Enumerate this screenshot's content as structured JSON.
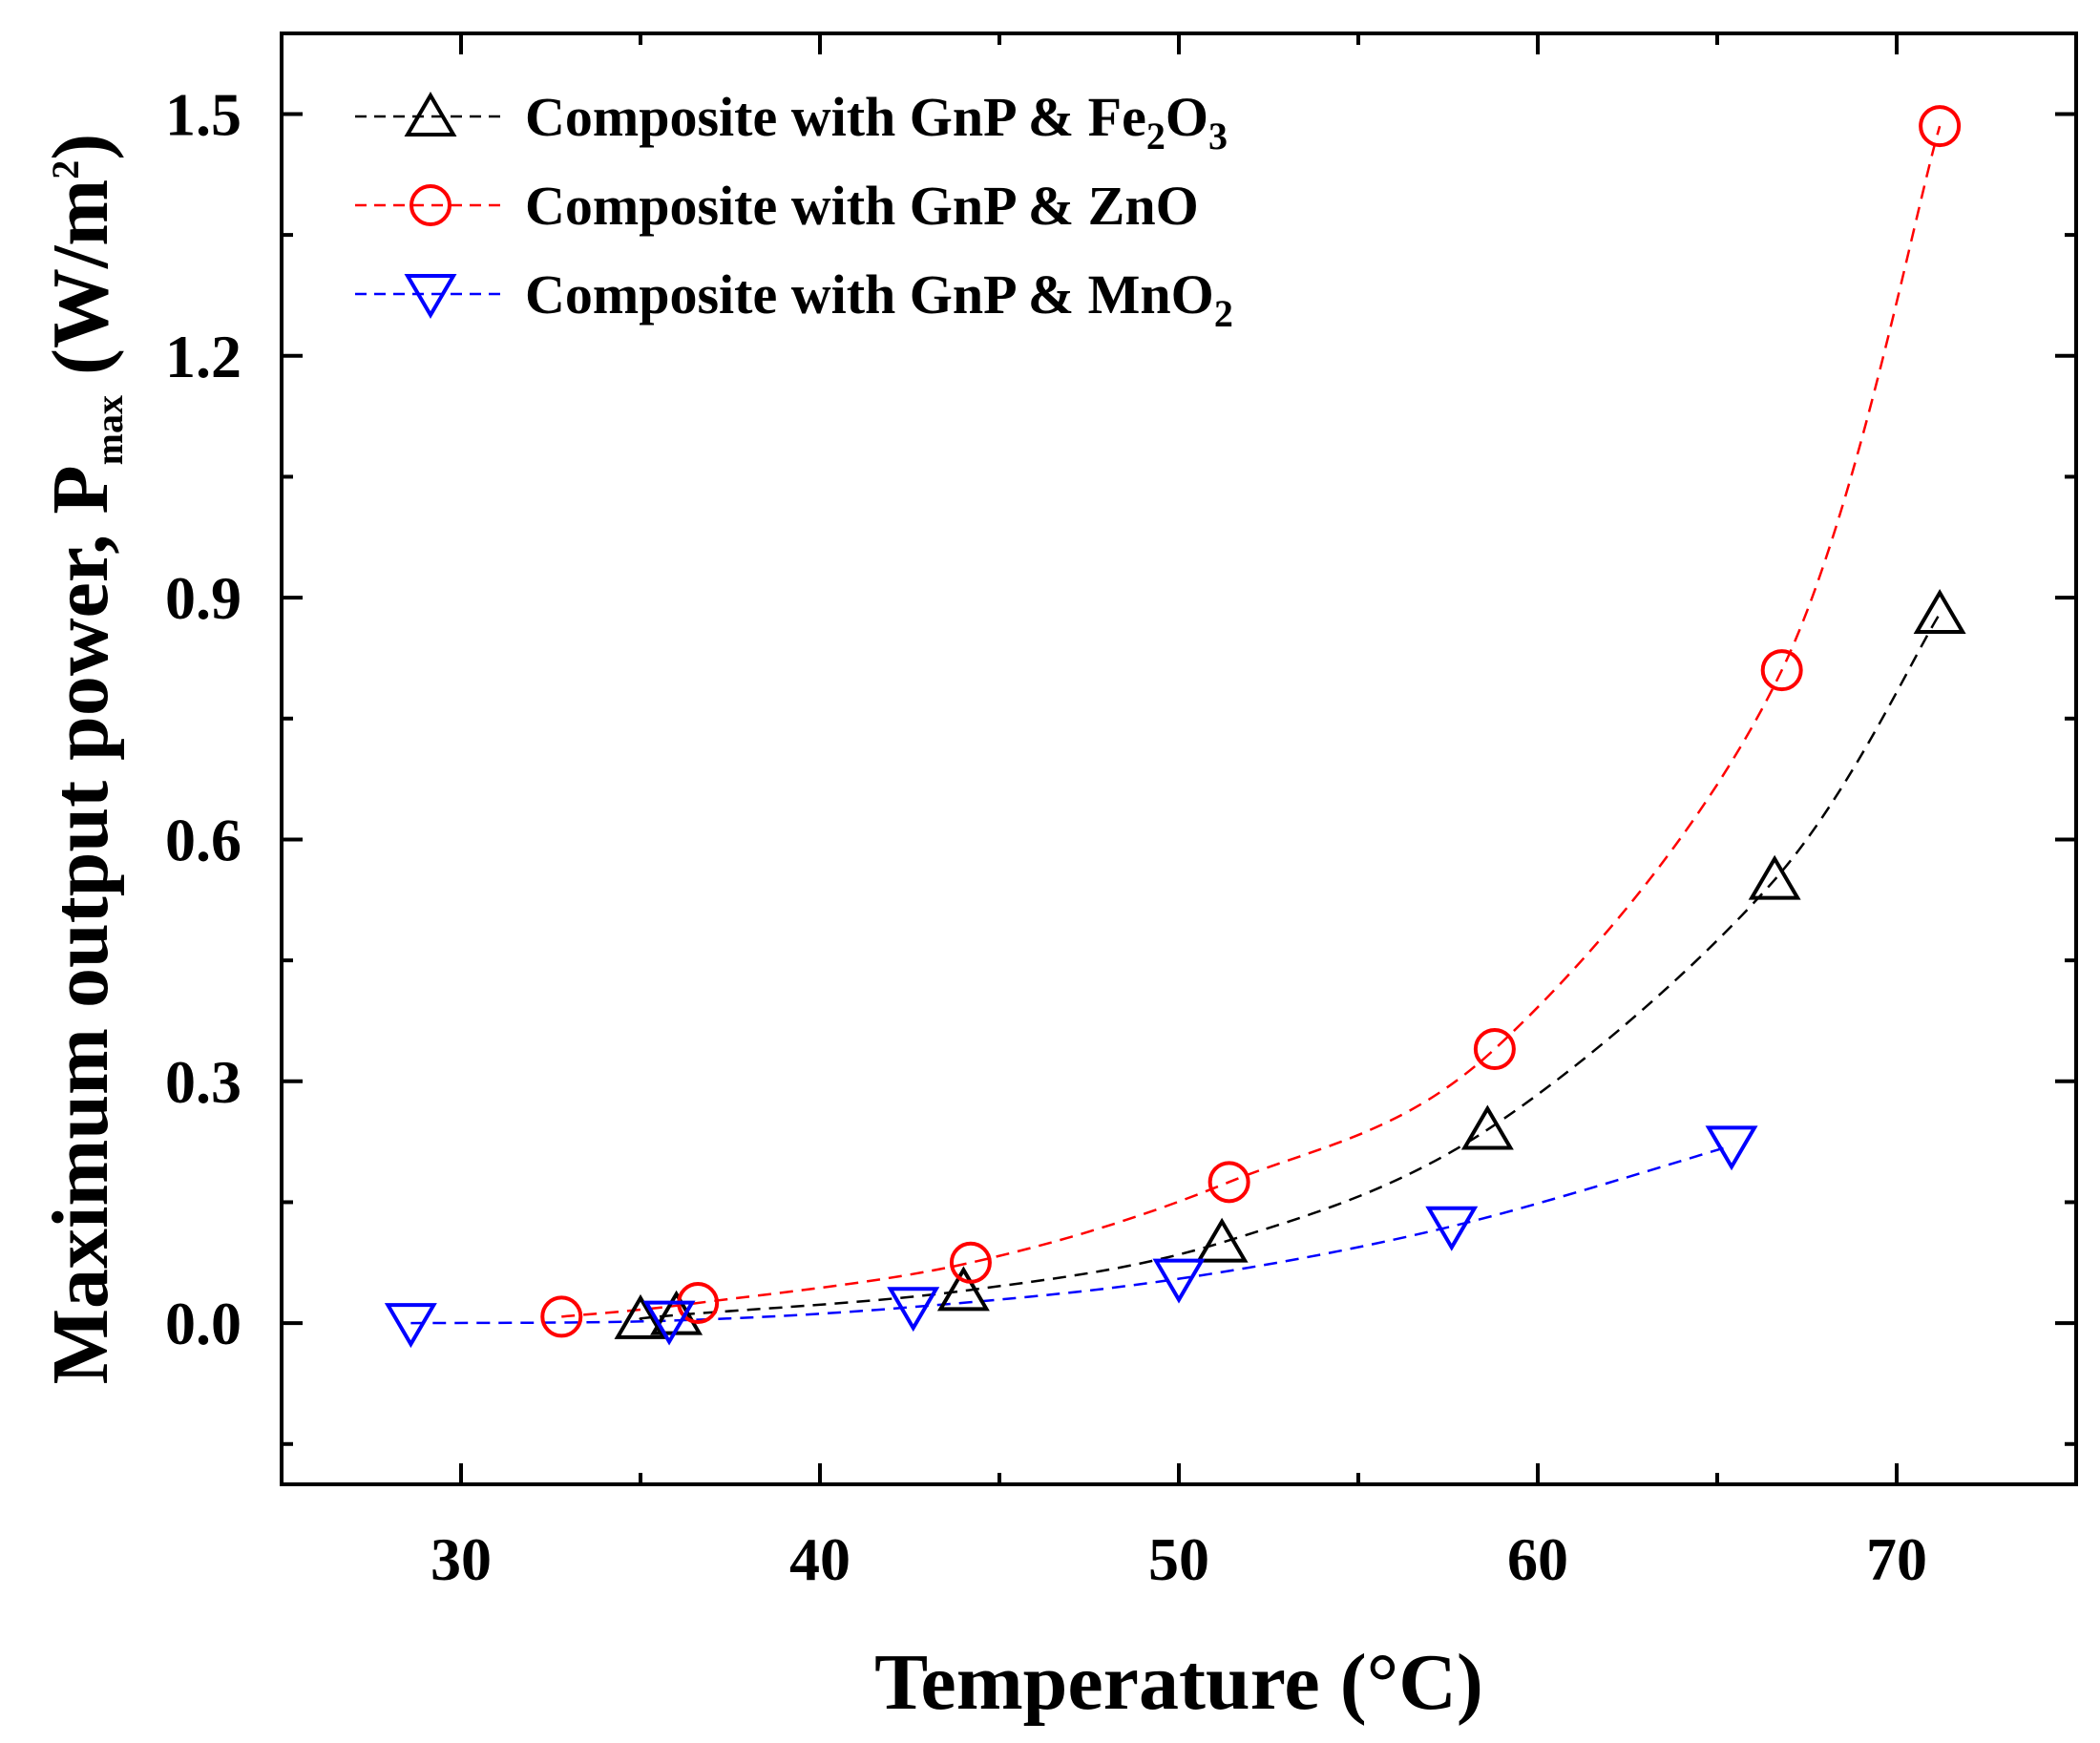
{
  "chart_data": {
    "type": "scatter",
    "xlabel": "Temperature (°C)",
    "ylabel": {
      "main": "Maximum output power, P",
      "subscript": "max",
      "unit_open": " (W/m",
      "superscript": "2",
      "unit_close": ")"
    },
    "xlim": [
      25,
      75
    ],
    "ylim": [
      -0.2,
      1.6
    ],
    "xticks": [
      30,
      40,
      50,
      60,
      70
    ],
    "xtick_labels": [
      "30",
      "40",
      "50",
      "60",
      "70"
    ],
    "yticks": [
      0.0,
      0.3,
      0.6,
      0.9,
      1.2,
      1.5
    ],
    "ytick_labels": [
      "0.0",
      "0.3",
      "0.6",
      "0.9",
      "1.2",
      "1.5"
    ],
    "grid": false,
    "legend_position": "top-left",
    "series": [
      {
        "name": "Composite with GnP & Fe2O3",
        "legend_parts": [
          "Composite with GnP & Fe",
          "2",
          "O",
          "3"
        ],
        "color": "#000000",
        "marker": "triangle-up",
        "x": [
          35.0,
          36.0,
          44.0,
          51.2,
          58.6,
          66.6,
          71.2
        ],
        "y": [
          0.005,
          0.01,
          0.04,
          0.1,
          0.24,
          0.55,
          0.88
        ]
      },
      {
        "name": "Composite with GnP & ZnO",
        "legend_parts": [
          "Composite with GnP & ZnO"
        ],
        "color": "#ff0000",
        "marker": "circle",
        "x": [
          32.8,
          36.6,
          44.2,
          51.4,
          58.8,
          66.8,
          71.2
        ],
        "y": [
          0.008,
          0.025,
          0.075,
          0.175,
          0.34,
          0.81,
          1.485
        ]
      },
      {
        "name": "Composite with GnP & MnO2",
        "legend_parts": [
          "Composite with GnP & MnO",
          "2"
        ],
        "color": "#0000ff",
        "marker": "triangle-down",
        "x": [
          28.6,
          35.8,
          42.6,
          50.0,
          57.6,
          65.4
        ],
        "y": [
          0.0,
          0.003,
          0.02,
          0.055,
          0.12,
          0.22
        ]
      }
    ]
  }
}
